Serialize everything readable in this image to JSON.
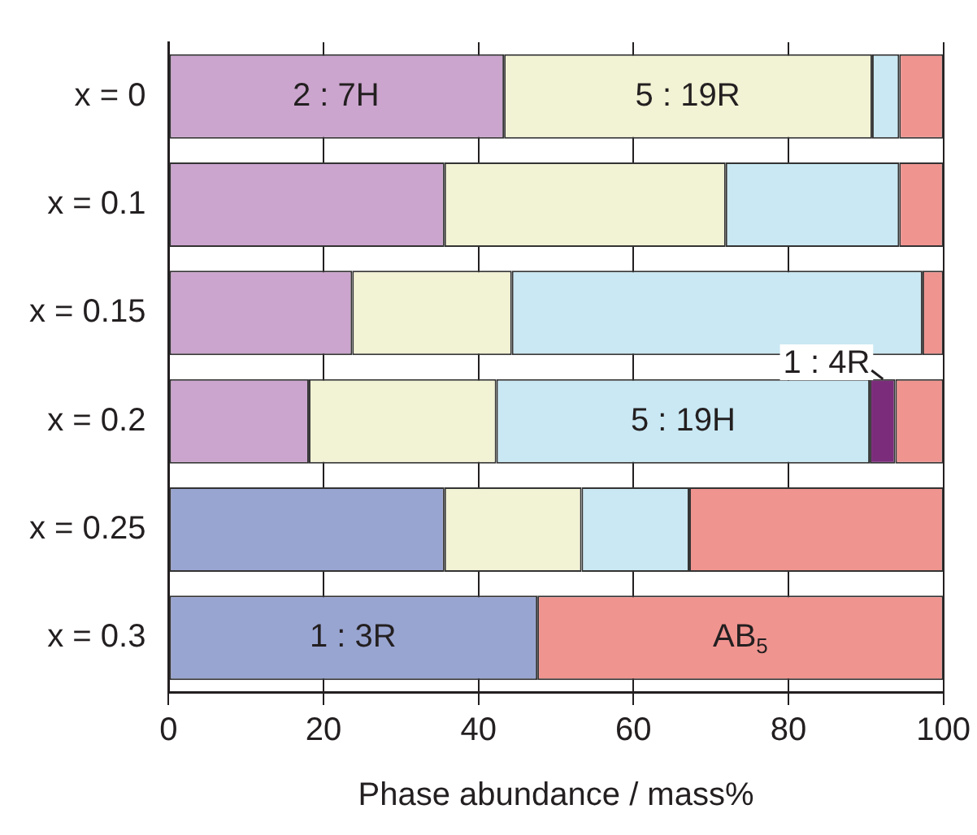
{
  "chart_data": {
    "type": "bar",
    "orientation": "horizontal",
    "stacked": true,
    "xlabel": "Phase abundance / mass%",
    "categories": [
      "x = 0",
      "x = 0.1",
      "x = 0.15",
      "x = 0.2",
      "x = 0.25",
      "x = 0.3"
    ],
    "series": [
      {
        "color": "#99a5d1",
        "values": [
          null,
          null,
          null,
          null,
          35.6,
          47.6
        ]
      },
      {
        "color": "#cba5ce",
        "values": [
          43.3,
          35.6,
          23.7,
          18.1,
          null,
          null
        ]
      },
      {
        "color": "#f2f2d4",
        "values": [
          47.5,
          36.3,
          20.6,
          24.2,
          17.7,
          null
        ]
      },
      {
        "color": "#c9e8f3",
        "values": [
          3.5,
          22.4,
          53.0,
          48.2,
          13.9,
          null
        ]
      },
      {
        "color": "#7b2d7b",
        "values": [
          null,
          null,
          null,
          3.3,
          null,
          null
        ]
      },
      {
        "color": "#f09490",
        "values": [
          5.7,
          5.7,
          2.7,
          6.2,
          32.8,
          52.4
        ]
      }
    ],
    "xlim": [
      0,
      100
    ],
    "xticks": [
      0,
      20,
      40,
      60,
      80,
      100
    ],
    "grid": "x",
    "legend": false,
    "annotations": [
      {
        "text": "2 : 7H",
        "x": 21.6,
        "y": "x = 0"
      },
      {
        "text": "5 : 19R",
        "x": 67,
        "y": "x = 0"
      },
      {
        "text": "5 : 19H",
        "x": 66.4,
        "y": "x = 0.2"
      },
      {
        "text": "1 : 4R",
        "x": 92.2,
        "y": "x = 0.2"
      },
      {
        "text": "1 : 3R",
        "x": 23.8,
        "y": "x = 0.3"
      },
      {
        "text": "AB$_{5}$",
        "x": 73.8,
        "y": "x = 0.3"
      }
    ]
  }
}
